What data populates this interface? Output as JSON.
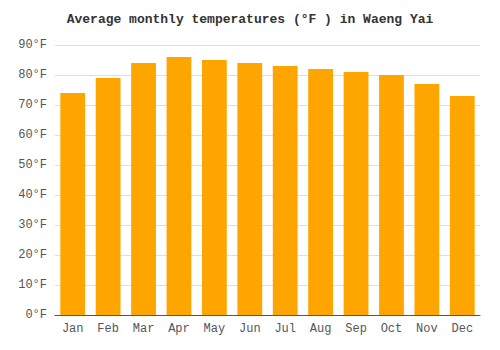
{
  "chart_data": {
    "type": "bar",
    "title": "Average monthly temperatures (°F ) in Waeng Yai",
    "categories": [
      "Jan",
      "Feb",
      "Mar",
      "Apr",
      "May",
      "Jun",
      "Jul",
      "Aug",
      "Sep",
      "Oct",
      "Nov",
      "Dec"
    ],
    "values": [
      74,
      79,
      84,
      86,
      85,
      84,
      83,
      82,
      81,
      80,
      77,
      73
    ],
    "color": "#FFA500",
    "ylim": [
      0,
      90
    ],
    "yticks": [
      {
        "value": 0,
        "label": "0°F"
      },
      {
        "value": 10,
        "label": "10°F"
      },
      {
        "value": 20,
        "label": "20°F"
      },
      {
        "value": 30,
        "label": "30°F"
      },
      {
        "value": 40,
        "label": "40°F"
      },
      {
        "value": 50,
        "label": "50°F"
      },
      {
        "value": 60,
        "label": "60°F"
      },
      {
        "value": 70,
        "label": "70°F"
      },
      {
        "value": 80,
        "label": "80°F"
      },
      {
        "value": 90,
        "label": "90°F"
      }
    ],
    "grid": true
  }
}
